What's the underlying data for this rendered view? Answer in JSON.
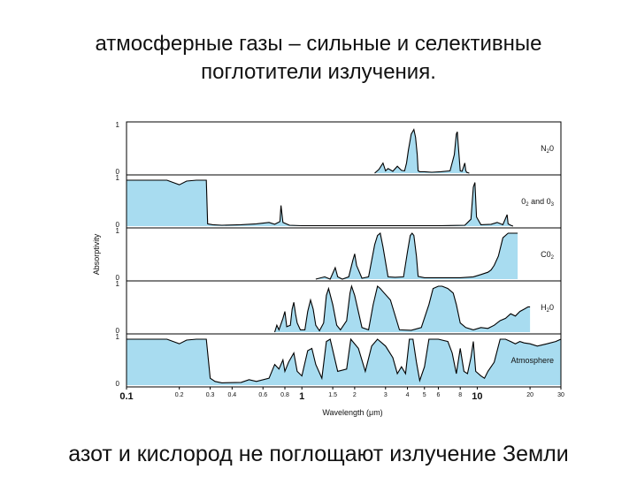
{
  "title": {
    "line1": "атмосферные газы – сильные и селективные",
    "line2": "поглотители излучения."
  },
  "footer": "азот и кислород не поглощают излучение Земли",
  "chart_data": {
    "type": "area",
    "xlabel": "Wavelength (μm)",
    "ylabel": "Absorptivity",
    "xscale": "log",
    "xlim": [
      0.1,
      30
    ],
    "ylim": [
      0,
      1
    ],
    "fill_color": "#a8dcf0",
    "line_color": "#000000",
    "x_ticks": [
      {
        "value": 0.1,
        "label": "0.1",
        "major": true
      },
      {
        "value": 0.2,
        "label": "0.2",
        "major": false
      },
      {
        "value": 0.3,
        "label": "0.3",
        "major": false
      },
      {
        "value": 0.4,
        "label": "0.4",
        "major": false
      },
      {
        "value": 0.6,
        "label": "0.6",
        "major": false
      },
      {
        "value": 0.8,
        "label": "0.8",
        "major": false
      },
      {
        "value": 1,
        "label": "1",
        "major": true
      },
      {
        "value": 1.5,
        "label": "1.5",
        "major": false
      },
      {
        "value": 2,
        "label": "2",
        "major": false
      },
      {
        "value": 3,
        "label": "3",
        "major": false
      },
      {
        "value": 4,
        "label": "4",
        "major": false
      },
      {
        "value": 5,
        "label": "5",
        "major": false
      },
      {
        "value": 6,
        "label": "6",
        "major": false
      },
      {
        "value": 8,
        "label": "8",
        "major": false
      },
      {
        "value": 10,
        "label": "10",
        "major": true
      },
      {
        "value": 20,
        "label": "20",
        "major": false
      },
      {
        "value": 30,
        "label": "30",
        "major": false
      }
    ],
    "panels": [
      {
        "name": "N2O",
        "label_main": "N",
        "label_sub": "2",
        "label_tail": "0",
        "y_top_label": "1",
        "y_bottom_label": "0",
        "x": [
          2.6,
          2.75,
          2.9,
          3.0,
          3.1,
          3.3,
          3.5,
          3.7,
          3.85,
          3.95,
          4.05,
          4.2,
          4.35,
          4.45,
          4.55,
          4.6,
          4.7,
          5.0,
          5.5,
          6.2,
          7.0,
          7.4,
          7.6,
          7.7,
          7.8,
          8.0,
          8.2,
          8.5,
          8.6,
          8.7,
          9.0
        ],
        "y": [
          0.0,
          0.08,
          0.22,
          0.05,
          0.1,
          0.04,
          0.15,
          0.06,
          0.05,
          0.22,
          0.5,
          0.85,
          0.95,
          0.78,
          0.4,
          0.05,
          0.03,
          0.03,
          0.02,
          0.03,
          0.05,
          0.4,
          0.85,
          0.9,
          0.6,
          0.05,
          0.04,
          0.22,
          0.06,
          0.02,
          0.0
        ]
      },
      {
        "name": "O2 and O3",
        "label_main": "0",
        "label_sub": "2",
        "label_tail": " and 0",
        "label_sub2": "3",
        "y_top_label": "1",
        "y_bottom_label": "0",
        "x": [
          0.1,
          0.17,
          0.2,
          0.22,
          0.25,
          0.285,
          0.29,
          0.31,
          0.35,
          0.45,
          0.55,
          0.65,
          0.7,
          0.75,
          0.76,
          0.78,
          0.85,
          1.0,
          2.0,
          4.0,
          6.0,
          8.5,
          9.2,
          9.5,
          9.7,
          9.9,
          10.5,
          12.0,
          13.0,
          14.0,
          14.8,
          15.0,
          15.5,
          16.0
        ],
        "y": [
          1.0,
          1.0,
          0.9,
          0.98,
          1.0,
          1.0,
          0.05,
          0.03,
          0.02,
          0.03,
          0.05,
          0.08,
          0.04,
          0.1,
          0.45,
          0.08,
          0.02,
          0.01,
          0.01,
          0.01,
          0.01,
          0.02,
          0.15,
          0.85,
          0.95,
          0.2,
          0.03,
          0.04,
          0.08,
          0.03,
          0.25,
          0.05,
          0.02,
          0.0
        ]
      },
      {
        "name": "CO2",
        "label_main": "C0",
        "label_sub": "2",
        "label_tail": "",
        "y_top_label": "1",
        "y_bottom_label": "0",
        "x": [
          1.2,
          1.35,
          1.45,
          1.55,
          1.6,
          1.7,
          1.85,
          1.95,
          2.0,
          2.05,
          2.2,
          2.4,
          2.6,
          2.7,
          2.8,
          2.9,
          3.1,
          3.4,
          3.8,
          4.0,
          4.15,
          4.25,
          4.35,
          4.5,
          4.6,
          5.0,
          6.0,
          8.0,
          9.5,
          10.5,
          11.5,
          12.0,
          12.5,
          13.2,
          14.0,
          15.0,
          16.0,
          17.0
        ],
        "y": [
          0.0,
          0.05,
          0.0,
          0.25,
          0.05,
          0.0,
          0.05,
          0.4,
          0.55,
          0.3,
          0.02,
          0.05,
          0.75,
          0.95,
          1.0,
          0.7,
          0.05,
          0.04,
          0.05,
          0.6,
          0.95,
          1.0,
          0.95,
          0.5,
          0.06,
          0.03,
          0.03,
          0.03,
          0.05,
          0.1,
          0.15,
          0.2,
          0.3,
          0.5,
          0.9,
          1.0,
          1.0,
          1.0
        ]
      },
      {
        "name": "H2O",
        "label_main": "H",
        "label_sub": "2",
        "label_tail": "0",
        "y_top_label": "1",
        "y_bottom_label": "0",
        "x": [
          0.7,
          0.72,
          0.74,
          0.78,
          0.8,
          0.82,
          0.86,
          0.88,
          0.9,
          0.92,
          0.94,
          0.98,
          1.04,
          1.08,
          1.12,
          1.16,
          1.2,
          1.26,
          1.33,
          1.38,
          1.42,
          1.5,
          1.58,
          1.66,
          1.8,
          1.88,
          1.92,
          2.0,
          2.2,
          2.4,
          2.55,
          2.7,
          2.8,
          2.95,
          3.2,
          3.6,
          4.2,
          4.8,
          5.3,
          5.6,
          6.0,
          6.3,
          6.8,
          7.3,
          7.6,
          8.0,
          8.6,
          9.5,
          10.5,
          11.5,
          12.5,
          13.5,
          14.5,
          15.5,
          16.5,
          17.5,
          18.5,
          19.5,
          20.0
        ],
        "y": [
          0.0,
          0.15,
          0.05,
          0.3,
          0.45,
          0.12,
          0.15,
          0.5,
          0.65,
          0.4,
          0.2,
          0.05,
          0.05,
          0.45,
          0.7,
          0.5,
          0.15,
          0.03,
          0.2,
          0.8,
          0.95,
          0.6,
          0.15,
          0.05,
          0.25,
          0.85,
          1.0,
          0.8,
          0.1,
          0.05,
          0.6,
          1.0,
          0.95,
          0.85,
          0.7,
          0.05,
          0.04,
          0.1,
          0.6,
          0.95,
          1.0,
          1.0,
          0.95,
          0.85,
          0.6,
          0.2,
          0.1,
          0.05,
          0.1,
          0.08,
          0.15,
          0.25,
          0.3,
          0.4,
          0.35,
          0.45,
          0.5,
          0.55,
          0.55
        ]
      },
      {
        "name": "Atmosphere",
        "label_main": "Atmosphere",
        "label_sub": "",
        "label_tail": "",
        "y_top_label": "1",
        "y_bottom_label": "0",
        "x": [
          0.1,
          0.17,
          0.2,
          0.22,
          0.25,
          0.285,
          0.3,
          0.32,
          0.35,
          0.45,
          0.5,
          0.55,
          0.65,
          0.7,
          0.74,
          0.78,
          0.8,
          0.84,
          0.9,
          0.94,
          1.0,
          1.08,
          1.14,
          1.2,
          1.3,
          1.38,
          1.45,
          1.6,
          1.8,
          1.9,
          2.1,
          2.3,
          2.5,
          2.7,
          3.0,
          3.3,
          3.5,
          3.7,
          3.9,
          4.1,
          4.3,
          4.5,
          4.7,
          5.0,
          5.3,
          5.5,
          6.0,
          6.8,
          7.2,
          7.6,
          8.0,
          8.4,
          8.8,
          9.2,
          9.5,
          9.8,
          10.5,
          11.0,
          11.5,
          12.5,
          13.5,
          14.5,
          15.5,
          16.5,
          17.5,
          18.5,
          20.0,
          22.0,
          25.0,
          28.0,
          30.0
        ],
        "y": [
          1.0,
          1.0,
          0.9,
          0.98,
          1.0,
          1.0,
          0.15,
          0.08,
          0.05,
          0.06,
          0.12,
          0.08,
          0.15,
          0.45,
          0.35,
          0.55,
          0.3,
          0.5,
          0.7,
          0.3,
          0.2,
          0.75,
          0.8,
          0.45,
          0.15,
          0.95,
          1.0,
          0.3,
          0.35,
          1.0,
          0.8,
          0.3,
          0.85,
          1.0,
          0.85,
          0.6,
          0.25,
          0.4,
          0.25,
          1.0,
          1.0,
          0.5,
          0.1,
          0.4,
          1.0,
          1.0,
          1.0,
          0.95,
          0.7,
          0.25,
          0.8,
          0.3,
          0.25,
          0.6,
          0.95,
          0.3,
          0.2,
          0.15,
          0.3,
          0.5,
          1.0,
          1.0,
          0.95,
          0.9,
          0.95,
          0.92,
          0.9,
          0.85,
          0.9,
          0.95,
          1.0
        ]
      }
    ]
  }
}
